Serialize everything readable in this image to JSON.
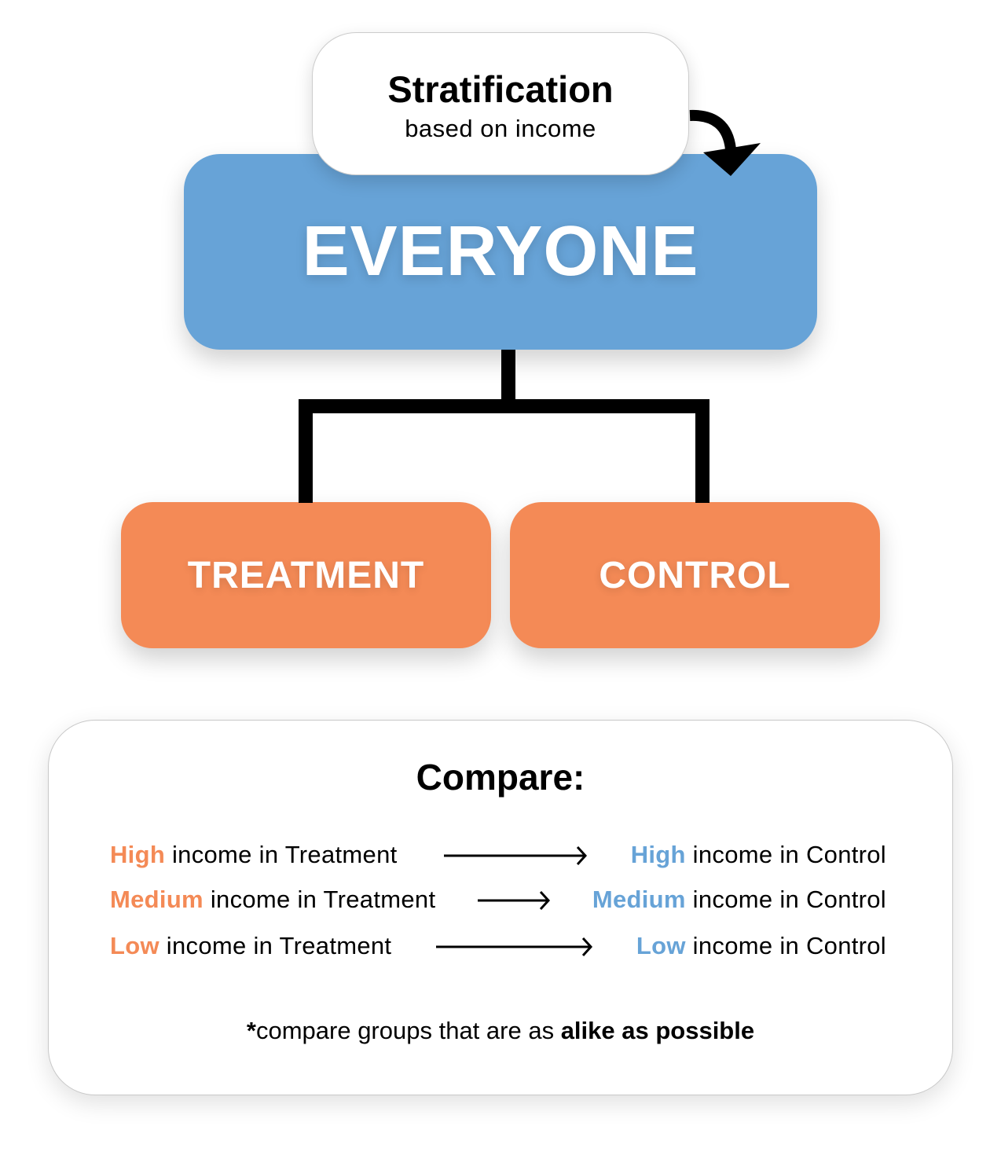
{
  "colors": {
    "everyone": "#67a3d7",
    "groups": "#f48a56",
    "treatment_level": "#f48a56",
    "control_level": "#67a3d7"
  },
  "stratification": {
    "title": "Stratification",
    "subtitle": "based on income",
    "icon": "curved-arrow-down-icon"
  },
  "root": {
    "label": "EVERYONE"
  },
  "groups": [
    {
      "label": "TREATMENT"
    },
    {
      "label": "CONTROL"
    }
  ],
  "compare": {
    "title": "Compare:",
    "rows": [
      {
        "level": "High",
        "left_rest": " income in Treatment",
        "right_level": "High",
        "right_rest": " income in Control"
      },
      {
        "level": "Medium",
        "left_rest": " income in Treatment",
        "right_level": "Medium",
        "right_rest": " income in Control"
      },
      {
        "level": "Low",
        "left_rest": " income in Treatment",
        "right_level": "Low",
        "right_rest": " income in Control"
      }
    ],
    "footnote": {
      "asterisk": "*",
      "text": "compare groups that are as ",
      "bold": "alike as possible"
    }
  }
}
